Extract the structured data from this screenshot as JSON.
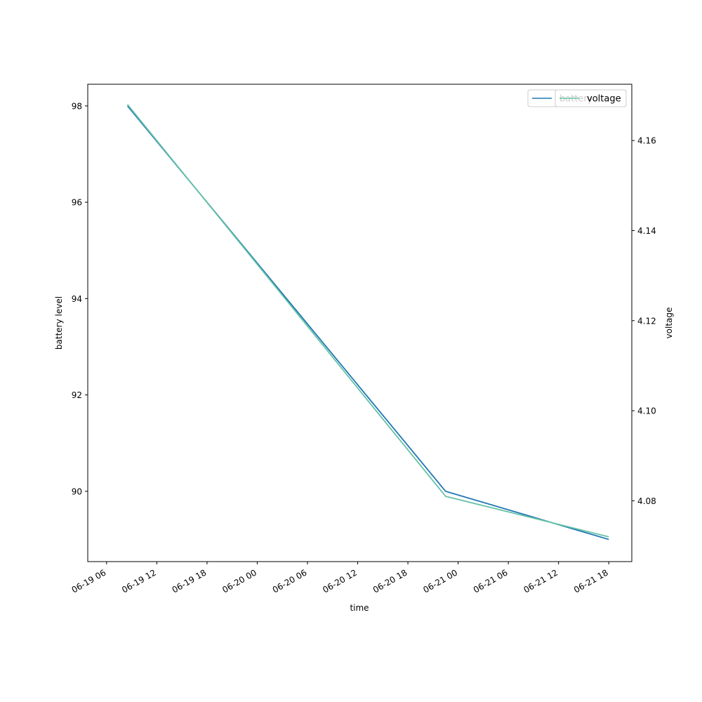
{
  "chart_data": {
    "type": "line",
    "xlabel": "time",
    "ylabel": "battery level",
    "ylabel_right": "voltage",
    "x_ticks": [
      "06-19 06",
      "06-19 12",
      "06-19 18",
      "06-20 00",
      "06-20 06",
      "06-20 12",
      "06-20 18",
      "06-21 00",
      "06-21 06",
      "06-21 12",
      "06-21 18"
    ],
    "left_ticks": [
      90,
      92,
      94,
      96,
      98
    ],
    "right_ticks": [
      "4.08",
      "4.10",
      "4.12",
      "4.14",
      "4.16"
    ],
    "xlim": [
      "2023-06-19T03:45",
      "2023-06-21T20:45"
    ],
    "ylim_left": [
      88.54,
      98.45
    ],
    "ylim_right": [
      4.0665,
      4.1725
    ],
    "series": [
      {
        "name": "battery",
        "axis": "left",
        "color": "#1f77b4",
        "x": [
          "2023-06-19T08:30",
          "2023-06-20T22:30",
          "2023-06-21T18:00"
        ],
        "values": [
          98,
          90,
          89
        ]
      },
      {
        "name": "voltage",
        "axis": "right",
        "color": "#66c2a5",
        "x": [
          "2023-06-19T08:30",
          "2023-06-20T22:30",
          "2023-06-21T18:00"
        ],
        "values": [
          4.168,
          4.081,
          4.072
        ]
      }
    ],
    "legends": [
      {
        "placement": "top-right",
        "entries": [
          "battery"
        ]
      },
      {
        "placement": "top-right",
        "entries": [
          "voltage"
        ]
      }
    ],
    "grid": false
  }
}
